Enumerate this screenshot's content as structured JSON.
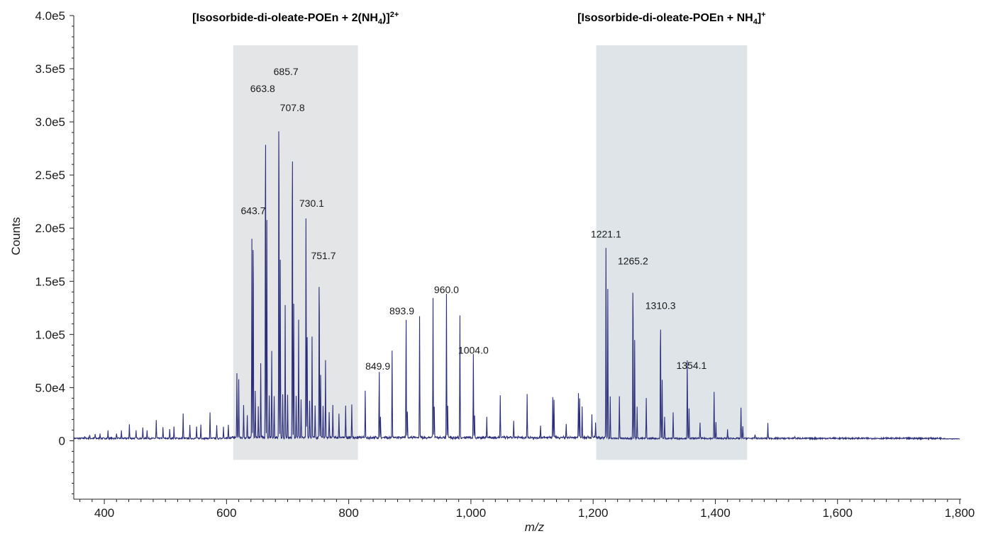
{
  "chart_data": {
    "type": "line",
    "xlabel": "m/z",
    "ylabel": "Counts",
    "xlim": [
      350,
      1800
    ],
    "ylim": [
      -55000,
      400000
    ],
    "x_ticks": [
      400,
      600,
      800,
      1000,
      1200,
      1400,
      1600,
      1800
    ],
    "x_tick_labels": [
      "400",
      "600",
      "800",
      "1,000",
      "1,200",
      "1,400",
      "1,600",
      "1,800"
    ],
    "y_ticks": [
      0,
      50000,
      100000,
      150000,
      200000,
      250000,
      300000,
      350000,
      400000
    ],
    "y_tick_labels": [
      "0",
      "5.0e4",
      "1.0e5",
      "1.5e5",
      "2.0e5",
      "2.5e5",
      "3.0e5",
      "3.5e5",
      "4.0e5"
    ],
    "line_color": "#2b2f7a",
    "highlight_regions": [
      {
        "from": 611,
        "to": 815,
        "y_from": -18000,
        "y_to": 372000,
        "color": "#e4e5e7",
        "title_main": "[Isosorbide-di-oleate-POEn + 2(NH",
        "title_sub": "4",
        "title_end": ")]",
        "title_sup": "2+"
      },
      {
        "from": 1205,
        "to": 1452,
        "y_from": -18000,
        "y_to": 372000,
        "color": "#dfe4e8",
        "title_main": "[Isosorbide-di-oleate-POEn + NH",
        "title_sub": "4",
        "title_end": "]",
        "title_sup": "+"
      }
    ],
    "peaks": [
      {
        "mz": 368,
        "counts": 2000
      },
      {
        "mz": 376,
        "counts": 3000
      },
      {
        "mz": 385,
        "counts": 4000
      },
      {
        "mz": 393,
        "counts": 5000
      },
      {
        "mz": 406,
        "counts": 7000
      },
      {
        "mz": 420,
        "counts": 5000
      },
      {
        "mz": 428,
        "counts": 7000
      },
      {
        "mz": 441,
        "counts": 13000
      },
      {
        "mz": 452,
        "counts": 7000
      },
      {
        "mz": 463,
        "counts": 10000
      },
      {
        "mz": 470,
        "counts": 8000
      },
      {
        "mz": 485,
        "counts": 17000
      },
      {
        "mz": 496,
        "counts": 10000
      },
      {
        "mz": 507,
        "counts": 9000
      },
      {
        "mz": 514,
        "counts": 11000
      },
      {
        "mz": 529,
        "counts": 23000
      },
      {
        "mz": 540,
        "counts": 12000
      },
      {
        "mz": 551,
        "counts": 11000
      },
      {
        "mz": 558,
        "counts": 13000
      },
      {
        "mz": 573,
        "counts": 24000
      },
      {
        "mz": 584,
        "counts": 12000
      },
      {
        "mz": 595,
        "counts": 11000
      },
      {
        "mz": 603,
        "counts": 12000
      },
      {
        "mz": 617,
        "counts": 60000
      },
      {
        "mz": 620,
        "counts": 55000
      },
      {
        "mz": 628,
        "counts": 30000
      },
      {
        "mz": 634,
        "counts": 20000
      },
      {
        "mz": 641.5,
        "counts": 187000
      },
      {
        "mz": 643.7,
        "counts": 209000
      },
      {
        "mz": 647,
        "counts": 45000
      },
      {
        "mz": 652,
        "counts": 30000
      },
      {
        "mz": 656,
        "counts": 70000
      },
      {
        "mz": 663.8,
        "counts": 324000
      },
      {
        "mz": 666,
        "counts": 205000
      },
      {
        "mz": 670,
        "counts": 40000
      },
      {
        "mz": 674,
        "counts": 82000
      },
      {
        "mz": 678,
        "counts": 40000
      },
      {
        "mz": 685.7,
        "counts": 340000
      },
      {
        "mz": 688,
        "counts": 168000
      },
      {
        "mz": 692,
        "counts": 40000
      },
      {
        "mz": 696,
        "counts": 125000
      },
      {
        "mz": 700,
        "counts": 40000
      },
      {
        "mz": 707.8,
        "counts": 306000
      },
      {
        "mz": 710,
        "counts": 126000
      },
      {
        "mz": 714,
        "counts": 40000
      },
      {
        "mz": 718,
        "counts": 110000
      },
      {
        "mz": 722,
        "counts": 35000
      },
      {
        "mz": 730.1,
        "counts": 216000
      },
      {
        "mz": 732,
        "counts": 95000
      },
      {
        "mz": 736,
        "counts": 35000
      },
      {
        "mz": 740,
        "counts": 95000
      },
      {
        "mz": 745,
        "counts": 30000
      },
      {
        "mz": 751.7,
        "counts": 167000
      },
      {
        "mz": 754,
        "counts": 60000
      },
      {
        "mz": 758,
        "counts": 30000
      },
      {
        "mz": 762,
        "counts": 73000
      },
      {
        "mz": 768,
        "counts": 25000
      },
      {
        "mz": 774,
        "counts": 30000
      },
      {
        "mz": 784,
        "counts": 22000
      },
      {
        "mz": 795,
        "counts": 30000
      },
      {
        "mz": 805,
        "counts": 32000
      },
      {
        "mz": 827,
        "counts": 44000
      },
      {
        "mz": 849.9,
        "counts": 63000
      },
      {
        "mz": 852,
        "counts": 20000
      },
      {
        "mz": 871,
        "counts": 82000
      },
      {
        "mz": 893.9,
        "counts": 115000
      },
      {
        "mz": 896,
        "counts": 25000
      },
      {
        "mz": 916,
        "counts": 115000
      },
      {
        "mz": 938,
        "counts": 131000
      },
      {
        "mz": 940,
        "counts": 30000
      },
      {
        "mz": 960.0,
        "counts": 135000
      },
      {
        "mz": 962,
        "counts": 30000
      },
      {
        "mz": 982,
        "counts": 115000
      },
      {
        "mz": 1004.0,
        "counts": 78000
      },
      {
        "mz": 1006,
        "counts": 20000
      },
      {
        "mz": 1026,
        "counts": 20000
      },
      {
        "mz": 1048,
        "counts": 40000
      },
      {
        "mz": 1070,
        "counts": 15000
      },
      {
        "mz": 1092,
        "counts": 41000
      },
      {
        "mz": 1114,
        "counts": 12000
      },
      {
        "mz": 1134,
        "counts": 38000
      },
      {
        "mz": 1136,
        "counts": 35000
      },
      {
        "mz": 1156,
        "counts": 14000
      },
      {
        "mz": 1176,
        "counts": 43000
      },
      {
        "mz": 1178,
        "counts": 38000
      },
      {
        "mz": 1182,
        "counts": 30000
      },
      {
        "mz": 1198,
        "counts": 22000
      },
      {
        "mz": 1204,
        "counts": 15000
      },
      {
        "mz": 1221.1,
        "counts": 187000
      },
      {
        "mz": 1224,
        "counts": 140000
      },
      {
        "mz": 1228,
        "counts": 40000
      },
      {
        "mz": 1243,
        "counts": 40000
      },
      {
        "mz": 1265.2,
        "counts": 162000
      },
      {
        "mz": 1268,
        "counts": 92000
      },
      {
        "mz": 1272,
        "counts": 30000
      },
      {
        "mz": 1287,
        "counts": 38000
      },
      {
        "mz": 1310.3,
        "counts": 120000
      },
      {
        "mz": 1313,
        "counts": 55000
      },
      {
        "mz": 1317,
        "counts": 20000
      },
      {
        "mz": 1331,
        "counts": 25000
      },
      {
        "mz": 1354.1,
        "counts": 77000
      },
      {
        "mz": 1357,
        "counts": 28000
      },
      {
        "mz": 1375,
        "counts": 15000
      },
      {
        "mz": 1398,
        "counts": 44000
      },
      {
        "mz": 1401,
        "counts": 15000
      },
      {
        "mz": 1420,
        "counts": 8000
      },
      {
        "mz": 1442,
        "counts": 29000
      },
      {
        "mz": 1445,
        "counts": 12000
      },
      {
        "mz": 1465,
        "counts": 4000
      },
      {
        "mz": 1486,
        "counts": 14000
      },
      {
        "mz": 1530,
        "counts": 2000
      }
    ],
    "labeled_peaks": [
      {
        "mz": 643.7,
        "counts": 209000,
        "label": "643.7"
      },
      {
        "mz": 663.8,
        "counts": 324000,
        "label": "663.8"
      },
      {
        "mz": 685.7,
        "counts": 340000,
        "label": "685.7"
      },
      {
        "mz": 707.8,
        "counts": 306000,
        "label": "707.8"
      },
      {
        "mz": 730.1,
        "counts": 216000,
        "label": "730.1"
      },
      {
        "mz": 751.7,
        "counts": 167000,
        "label": "751.7"
      },
      {
        "mz": 849.9,
        "counts": 63000,
        "label": "849.9"
      },
      {
        "mz": 893.9,
        "counts": 115000,
        "label": "893.9"
      },
      {
        "mz": 960.0,
        "counts": 135000,
        "label": "960.0"
      },
      {
        "mz": 1004.0,
        "counts": 78000,
        "label": "1004.0"
      },
      {
        "mz": 1221.1,
        "counts": 187000,
        "label": "1221.1"
      },
      {
        "mz": 1265.2,
        "counts": 162000,
        "label": "1265.2"
      },
      {
        "mz": 1310.3,
        "counts": 120000,
        "label": "1310.3"
      },
      {
        "mz": 1354.1,
        "counts": 77000,
        "label": "1354.1"
      }
    ],
    "grid": false,
    "legend": "none"
  }
}
